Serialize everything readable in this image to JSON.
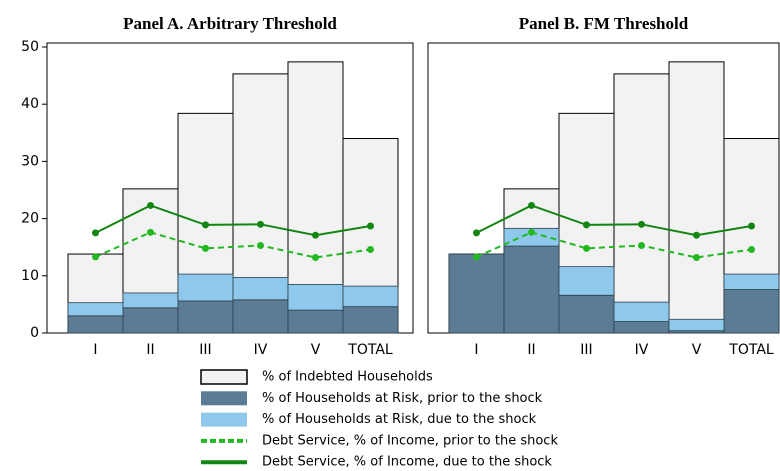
{
  "chart_data": [
    {
      "type": "bar",
      "title": "Panel A. Arbitrary Threshold",
      "categories": [
        "I",
        "II",
        "III",
        "IV",
        "V",
        "TOTAL"
      ],
      "ylim": [
        0,
        50
      ],
      "yticks": [
        0,
        10,
        20,
        30,
        40,
        50
      ],
      "series": [
        {
          "name": "% of Indebted Households",
          "kind": "bar",
          "color": "#f2f2f2",
          "values": [
            13.8,
            25.2,
            38.4,
            45.3,
            47.4,
            34.0
          ]
        },
        {
          "name": "% of Households at Risk, prior to the shock",
          "kind": "bar",
          "stack": "risk",
          "color": "#5b7c94",
          "values": [
            3.0,
            4.4,
            5.6,
            5.8,
            4.0,
            4.6
          ]
        },
        {
          "name": "% of Households at Risk, due to the shock",
          "kind": "bar",
          "stack": "risk",
          "color": "#8ec9ec",
          "values": [
            2.3,
            2.6,
            4.7,
            3.9,
            4.5,
            3.6
          ]
        },
        {
          "name": "Debt Service, % of Income, prior to the shock",
          "kind": "line",
          "dash": true,
          "color": "#22b822",
          "values": [
            13.3,
            17.6,
            14.8,
            15.3,
            13.2,
            14.6
          ]
        },
        {
          "name": "Debt Service, % of Income, due to the shock",
          "kind": "line",
          "color": "#128512",
          "values": [
            17.5,
            22.3,
            18.9,
            19.0,
            17.1,
            18.7
          ]
        }
      ]
    },
    {
      "type": "bar",
      "title": "Panel B. FM Threshold",
      "categories": [
        "I",
        "II",
        "III",
        "IV",
        "V",
        "TOTAL"
      ],
      "ylim": [
        0,
        50
      ],
      "series": [
        {
          "kind": "bar",
          "color": "#f2f2f2",
          "values": [
            13.8,
            25.2,
            38.4,
            45.3,
            47.4,
            34.0
          ]
        },
        {
          "kind": "bar",
          "stack": "risk",
          "color": "#5b7c94",
          "values": [
            13.8,
            15.2,
            6.6,
            2.0,
            0.4,
            7.6
          ]
        },
        {
          "kind": "bar",
          "stack": "risk",
          "color": "#8ec9ec",
          "values": [
            0,
            3.1,
            5.0,
            3.4,
            2.0,
            2.7
          ]
        },
        {
          "kind": "line",
          "dash": true,
          "color": "#22b822",
          "values": [
            13.3,
            17.6,
            14.8,
            15.3,
            13.2,
            14.6
          ]
        },
        {
          "kind": "line",
          "color": "#128512",
          "values": [
            17.5,
            22.3,
            18.9,
            19.0,
            17.1,
            18.7
          ]
        }
      ]
    }
  ]
}
